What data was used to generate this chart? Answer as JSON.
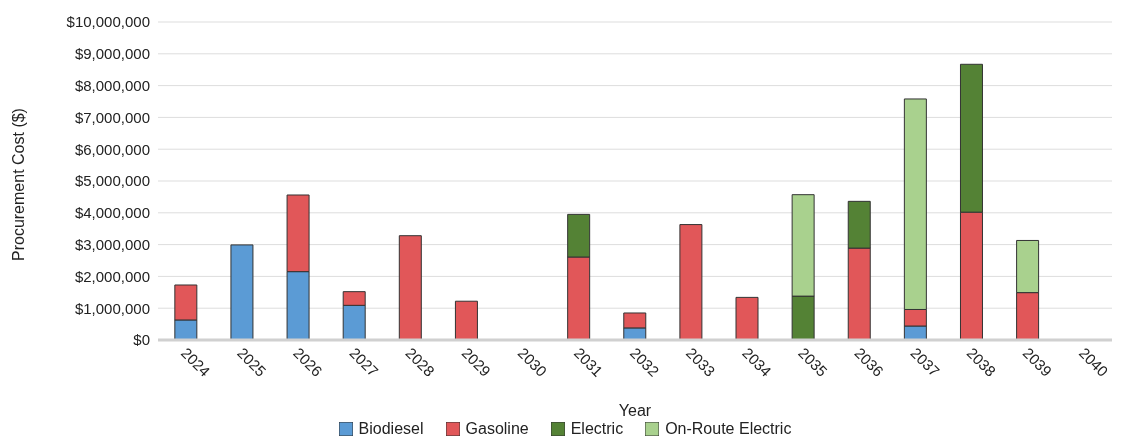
{
  "chart_data": {
    "type": "bar",
    "stacked": true,
    "xlabel": "Year",
    "ylabel": "Procurement Cost ($)",
    "categories": [
      "2024",
      "2025",
      "2026",
      "2027",
      "2028",
      "2029",
      "2030",
      "2031",
      "2032",
      "2033",
      "2034",
      "2035",
      "2036",
      "2037",
      "2038",
      "2039",
      "2040"
    ],
    "series": [
      {
        "name": "Biodiesel",
        "color": "#5b9bd5",
        "values": [
          630000,
          2990000,
          2150000,
          1090000,
          null,
          null,
          null,
          null,
          380000,
          null,
          null,
          null,
          null,
          440000,
          null,
          null,
          null
        ]
      },
      {
        "name": "Gasoline",
        "color": "#e15759",
        "values": [
          1100000,
          null,
          2410000,
          430000,
          3280000,
          1220000,
          null,
          2610000,
          470000,
          3630000,
          1340000,
          null,
          2890000,
          520000,
          4020000,
          1490000,
          null
        ]
      },
      {
        "name": "Electric",
        "color": "#548235",
        "values": [
          null,
          null,
          null,
          null,
          null,
          null,
          null,
          1340000,
          null,
          null,
          null,
          1380000,
          1470000,
          null,
          4650000,
          null,
          null
        ]
      },
      {
        "name": "On-Route Electric",
        "color": "#a9d18e",
        "values": [
          null,
          null,
          null,
          null,
          null,
          null,
          null,
          null,
          null,
          null,
          null,
          3190000,
          null,
          6620000,
          null,
          1640000,
          null
        ]
      }
    ],
    "ylim": [
      0,
      10000000
    ],
    "yticks": [
      {
        "value": 0,
        "label": "$0"
      },
      {
        "value": 1000000,
        "label": "$1,000,000"
      },
      {
        "value": 2000000,
        "label": "$2,000,000"
      },
      {
        "value": 3000000,
        "label": "$3,000,000"
      },
      {
        "value": 4000000,
        "label": "$4,000,000"
      },
      {
        "value": 5000000,
        "label": "$5,000,000"
      },
      {
        "value": 6000000,
        "label": "$6,000,000"
      },
      {
        "value": 7000000,
        "label": "$7,000,000"
      },
      {
        "value": 8000000,
        "label": "$8,000,000"
      },
      {
        "value": 9000000,
        "label": "$9,000,000"
      },
      {
        "value": 10000000,
        "label": "$10,000,000"
      }
    ],
    "grid": "y",
    "legend": "bottom"
  }
}
